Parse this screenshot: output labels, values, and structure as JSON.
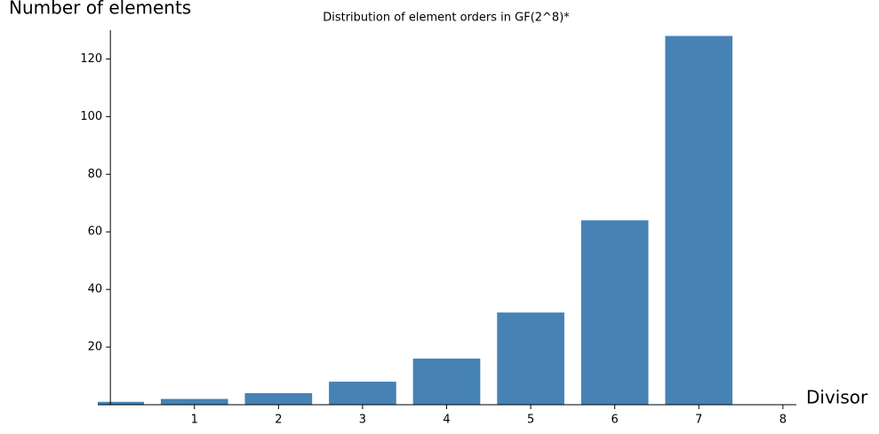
{
  "chart_data": {
    "type": "bar",
    "title": "Distribution of element orders in GF(2^8)*",
    "y_label": "Number of elements",
    "x_label": "Divisor",
    "x": [
      0,
      1,
      2,
      3,
      4,
      5,
      6,
      7
    ],
    "values": [
      1,
      2,
      4,
      8,
      16,
      32,
      64,
      128
    ],
    "color": "#4682b4",
    "xlim": [
      -0.15,
      8.16
    ],
    "ylim": [
      0,
      130
    ],
    "xticks": [
      1,
      2,
      3,
      4,
      5,
      6,
      7,
      8
    ],
    "yticks": [
      20,
      40,
      60,
      80,
      100,
      120
    ],
    "grid": false
  }
}
